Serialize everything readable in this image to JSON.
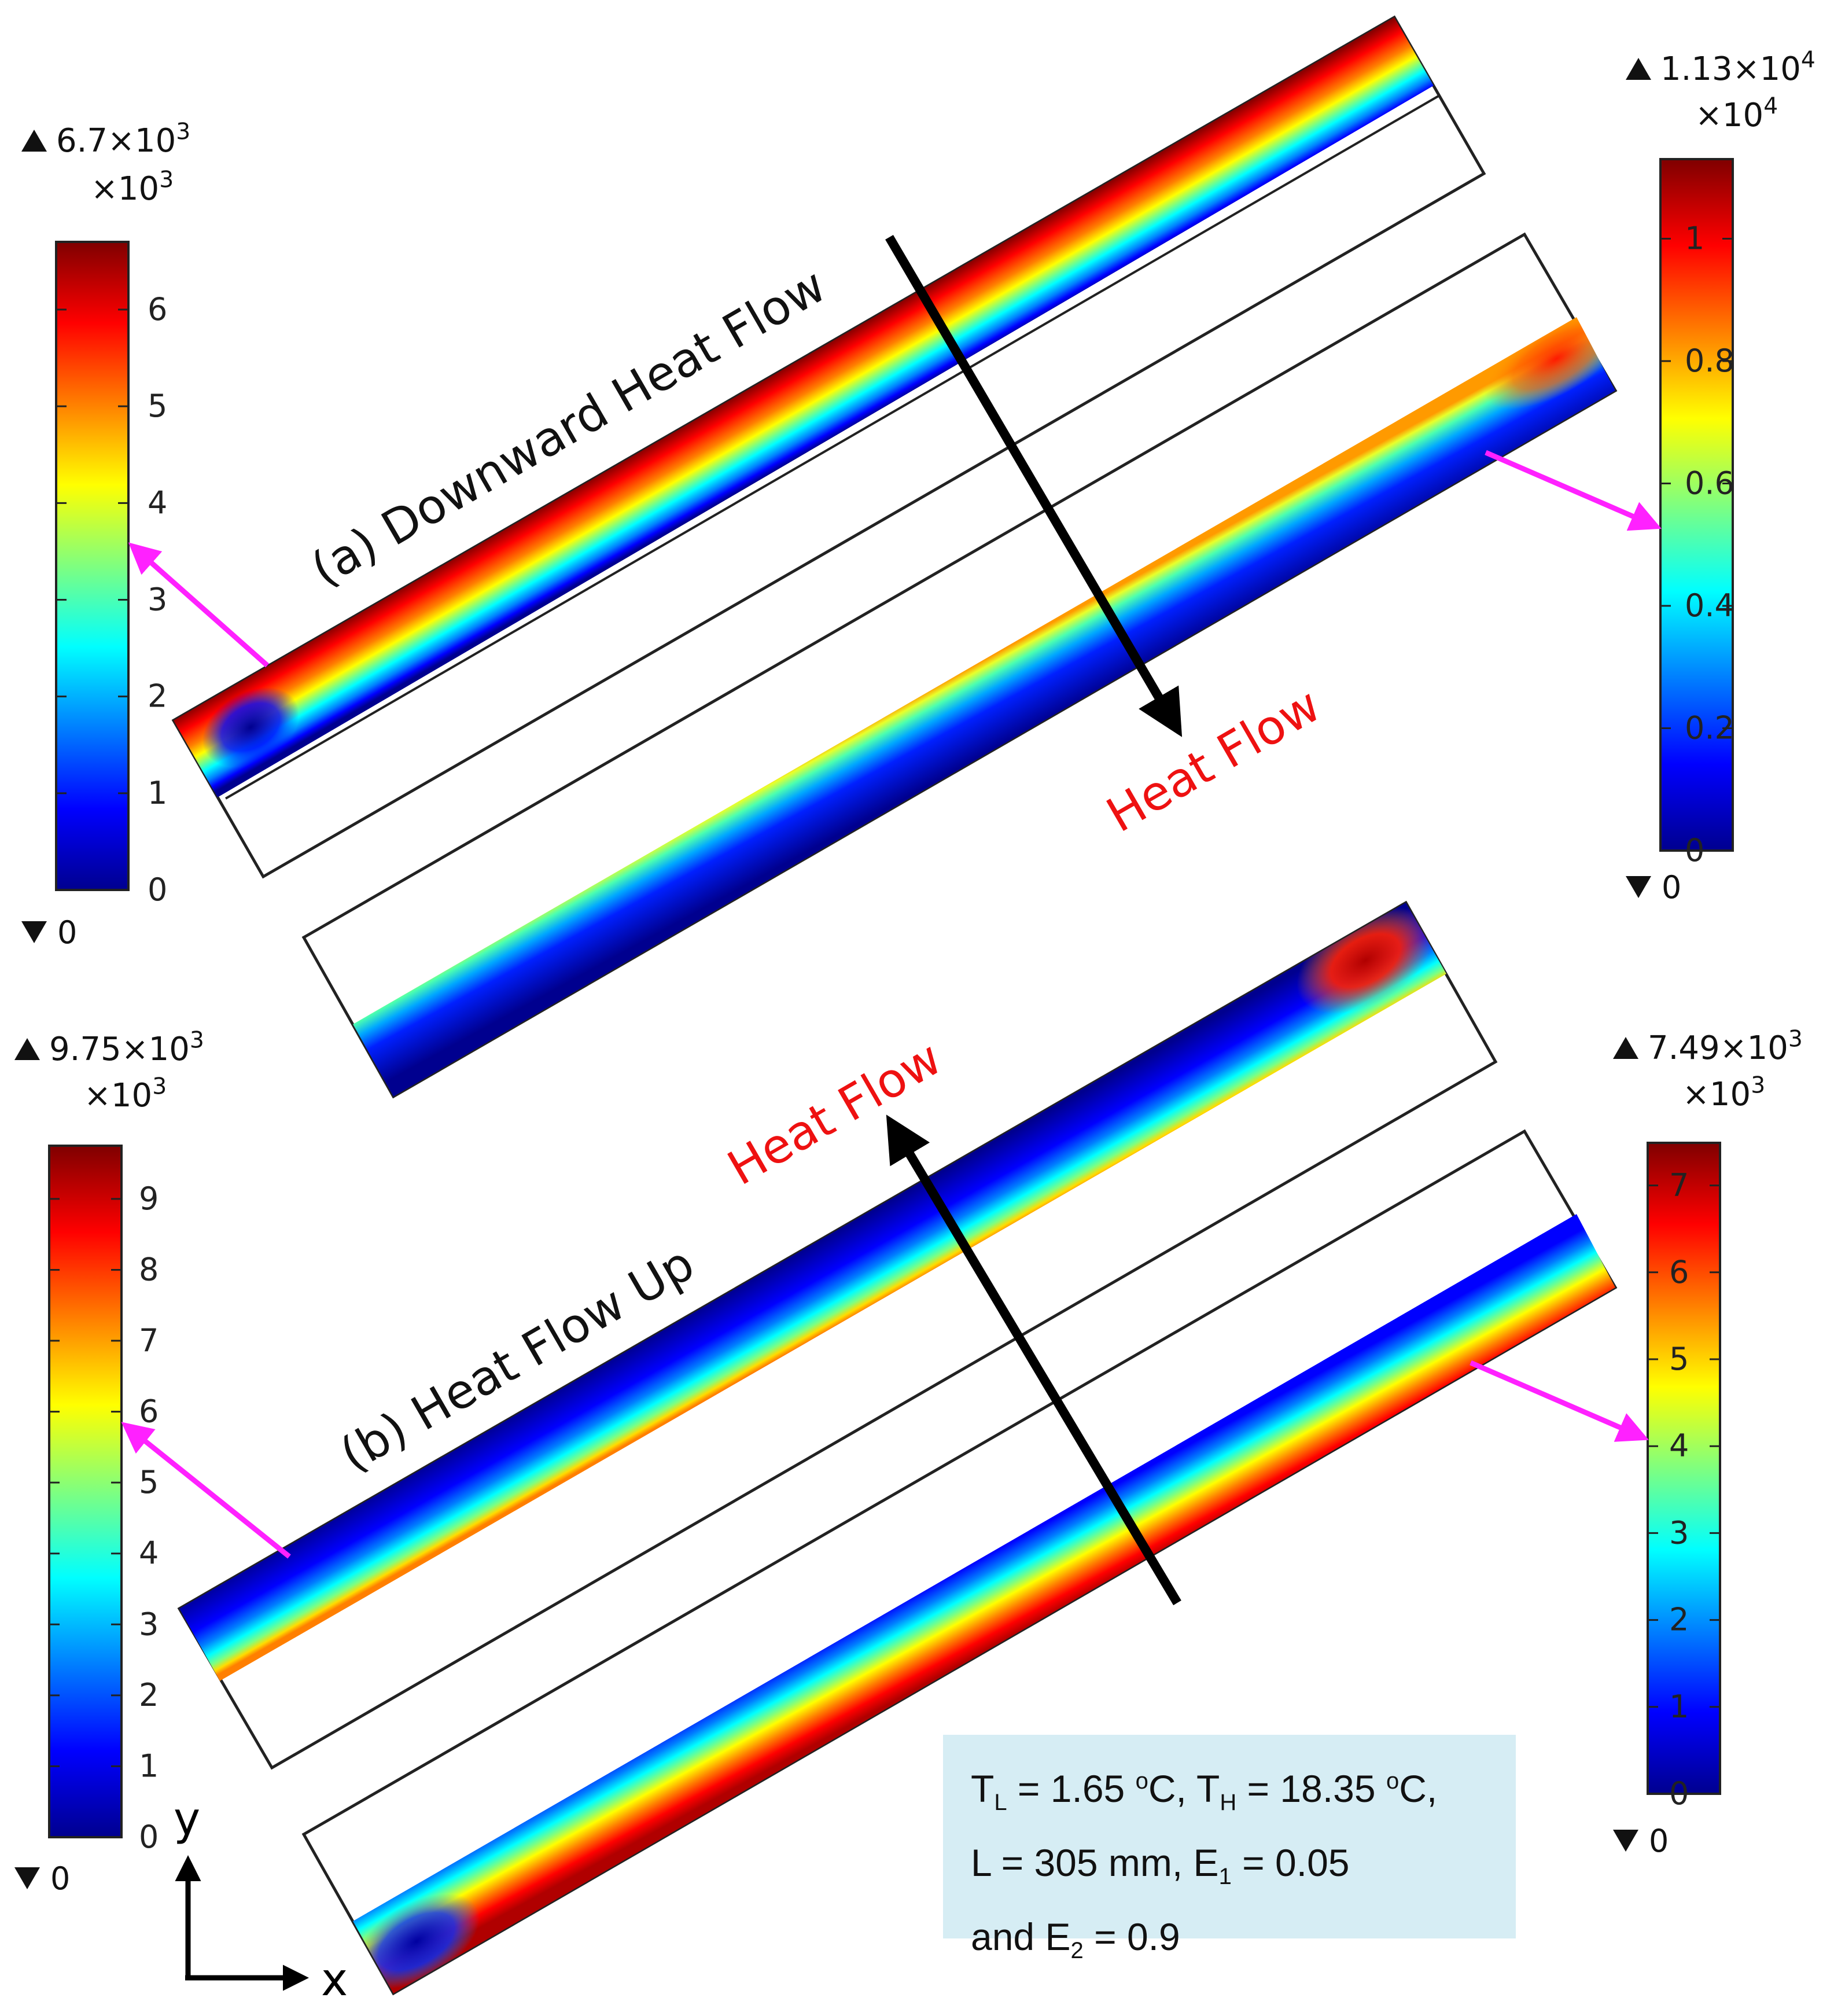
{
  "panel_a": {
    "label": "(a) Downward Heat Flow",
    "heat_flow_label": "Heat Flow",
    "left_colorbar": {
      "max_label": "6.7×10",
      "max_exp": "3",
      "mult_label": "×10",
      "mult_exp": "3",
      "ticks": [
        "0",
        "1",
        "2",
        "3",
        "4",
        "5",
        "6"
      ],
      "min_label": "0",
      "max_value": 6.7,
      "indicated_value": 3.55
    },
    "right_colorbar": {
      "max_label": "1.13×10",
      "max_exp": "4",
      "mult_label": "×10",
      "mult_exp": "4",
      "ticks": [
        "0",
        "0.2",
        "0.4",
        "0.6",
        "0.8",
        "1"
      ],
      "min_label": "0",
      "max_value": 1.13,
      "indicated_value": 0.53
    }
  },
  "panel_b": {
    "label": "(b) Heat Flow Up",
    "heat_flow_label": "Heat Flow",
    "left_colorbar": {
      "max_label": "9.75×10",
      "max_exp": "3",
      "mult_label": "×10",
      "mult_exp": "3",
      "ticks": [
        "0",
        "1",
        "2",
        "3",
        "4",
        "5",
        "6",
        "7",
        "8",
        "9"
      ],
      "min_label": "0",
      "max_value": 9.75,
      "indicated_value": 5.8
    },
    "right_colorbar": {
      "max_label": "7.49×10",
      "max_exp": "3",
      "mult_label": "×10",
      "mult_exp": "3",
      "ticks": [
        "0",
        "1",
        "2",
        "3",
        "4",
        "5",
        "6",
        "7"
      ],
      "min_label": "0",
      "max_value": 7.49,
      "indicated_value": 4.1
    }
  },
  "axes": {
    "y_label": "y",
    "x_label": "x"
  },
  "info": {
    "tl_T": "T",
    "tl_sub": "L",
    "tl_val": " = 1.65 ",
    "tl_deg": "o",
    "tl_unit": "C, ",
    "th_T": "T",
    "th_sub": "H",
    "th_val": " = 18.35 ",
    "th_deg": "o",
    "th_unit": "C,",
    "line2_a": "L = 305 mm, E",
    "e1_sub": "1",
    "line2_b": " = 0.05",
    "line3_a": "and E",
    "e2_sub": "2",
    "line3_b": " = 0.9"
  },
  "colors": {
    "arrow_magenta": "#ff21ff",
    "heat_flow_red": "#ee1111",
    "colormap": [
      "#00008f",
      "#0000ff",
      "#007fff",
      "#00ffff",
      "#7fff7f",
      "#ffff00",
      "#ff7f00",
      "#ff0000",
      "#7f0000"
    ]
  }
}
